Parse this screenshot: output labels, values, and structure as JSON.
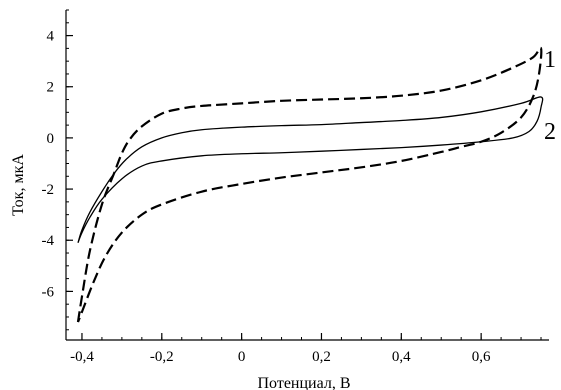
{
  "chart_data": {
    "type": "line",
    "title": "",
    "xlabel": "Потенциал, В",
    "ylabel": "Ток, мкА",
    "xlim": [
      -0.44,
      0.77
    ],
    "ylim": [
      -7.9,
      5.0
    ],
    "grid": false,
    "x_ticks": [
      {
        "value": -0.4,
        "label": "-0,4"
      },
      {
        "value": -0.2,
        "label": "-0,2"
      },
      {
        "value": 0,
        "label": "0"
      },
      {
        "value": 0.2,
        "label": "0,2"
      },
      {
        "value": 0.4,
        "label": "0,4"
      },
      {
        "value": 0.6,
        "label": "0,6"
      }
    ],
    "x_minor_step": 0.05,
    "y_ticks": [
      {
        "value": 4,
        "label": "4"
      },
      {
        "value": 2,
        "label": "2"
      },
      {
        "value": 0,
        "label": "0"
      },
      {
        "value": -2,
        "label": "-2"
      },
      {
        "value": -4,
        "label": "-4"
      },
      {
        "value": -6,
        "label": "-6"
      }
    ],
    "y_minor_step": 0.5,
    "curve_labels": [
      "1",
      "2"
    ],
    "series": [
      {
        "label": "1",
        "style": "dashed",
        "color": "#000000",
        "points": [
          [
            -0.41,
            -7.2
          ],
          [
            -0.4,
            -6.2
          ],
          [
            -0.38,
            -4.4
          ],
          [
            -0.35,
            -2.6
          ],
          [
            -0.32,
            -1.4
          ],
          [
            -0.3,
            -0.6
          ],
          [
            -0.28,
            -0.05
          ],
          [
            -0.25,
            0.45
          ],
          [
            -0.2,
            0.95
          ],
          [
            -0.15,
            1.15
          ],
          [
            -0.1,
            1.25
          ],
          [
            0.0,
            1.35
          ],
          [
            0.1,
            1.45
          ],
          [
            0.2,
            1.5
          ],
          [
            0.3,
            1.55
          ],
          [
            0.4,
            1.65
          ],
          [
            0.5,
            1.85
          ],
          [
            0.6,
            2.25
          ],
          [
            0.68,
            2.75
          ],
          [
            0.73,
            3.15
          ],
          [
            0.75,
            3.5
          ],
          [
            0.745,
            2.5
          ],
          [
            0.73,
            1.6
          ],
          [
            0.7,
            0.8
          ],
          [
            0.65,
            0.2
          ],
          [
            0.6,
            -0.15
          ],
          [
            0.55,
            -0.35
          ],
          [
            0.5,
            -0.55
          ],
          [
            0.4,
            -0.9
          ],
          [
            0.3,
            -1.15
          ],
          [
            0.2,
            -1.35
          ],
          [
            0.1,
            -1.55
          ],
          [
            0.0,
            -1.8
          ],
          [
            -0.1,
            -2.1
          ],
          [
            -0.2,
            -2.6
          ],
          [
            -0.25,
            -3.0
          ],
          [
            -0.3,
            -3.7
          ],
          [
            -0.34,
            -4.6
          ],
          [
            -0.37,
            -5.6
          ],
          [
            -0.4,
            -6.8
          ],
          [
            -0.41,
            -7.2
          ]
        ]
      },
      {
        "label": "2",
        "style": "solid",
        "color": "#000000",
        "points": [
          [
            -0.41,
            -4.1
          ],
          [
            -0.4,
            -3.6
          ],
          [
            -0.38,
            -2.9
          ],
          [
            -0.35,
            -2.1
          ],
          [
            -0.32,
            -1.4
          ],
          [
            -0.29,
            -0.85
          ],
          [
            -0.25,
            -0.35
          ],
          [
            -0.2,
            0.0
          ],
          [
            -0.15,
            0.2
          ],
          [
            -0.1,
            0.32
          ],
          [
            0.0,
            0.42
          ],
          [
            0.1,
            0.48
          ],
          [
            0.2,
            0.52
          ],
          [
            0.3,
            0.6
          ],
          [
            0.4,
            0.68
          ],
          [
            0.5,
            0.8
          ],
          [
            0.6,
            1.02
          ],
          [
            0.7,
            1.35
          ],
          [
            0.75,
            1.6
          ],
          [
            0.75,
            1.2
          ],
          [
            0.74,
            0.65
          ],
          [
            0.72,
            0.25
          ],
          [
            0.68,
            0.0
          ],
          [
            0.6,
            -0.15
          ],
          [
            0.5,
            -0.28
          ],
          [
            0.4,
            -0.38
          ],
          [
            0.3,
            -0.45
          ],
          [
            0.2,
            -0.52
          ],
          [
            0.1,
            -0.58
          ],
          [
            0.0,
            -0.62
          ],
          [
            -0.1,
            -0.7
          ],
          [
            -0.2,
            -0.9
          ],
          [
            -0.25,
            -1.1
          ],
          [
            -0.3,
            -1.6
          ],
          [
            -0.35,
            -2.4
          ],
          [
            -0.38,
            -3.1
          ],
          [
            -0.4,
            -3.7
          ],
          [
            -0.41,
            -4.1
          ]
        ]
      }
    ]
  }
}
